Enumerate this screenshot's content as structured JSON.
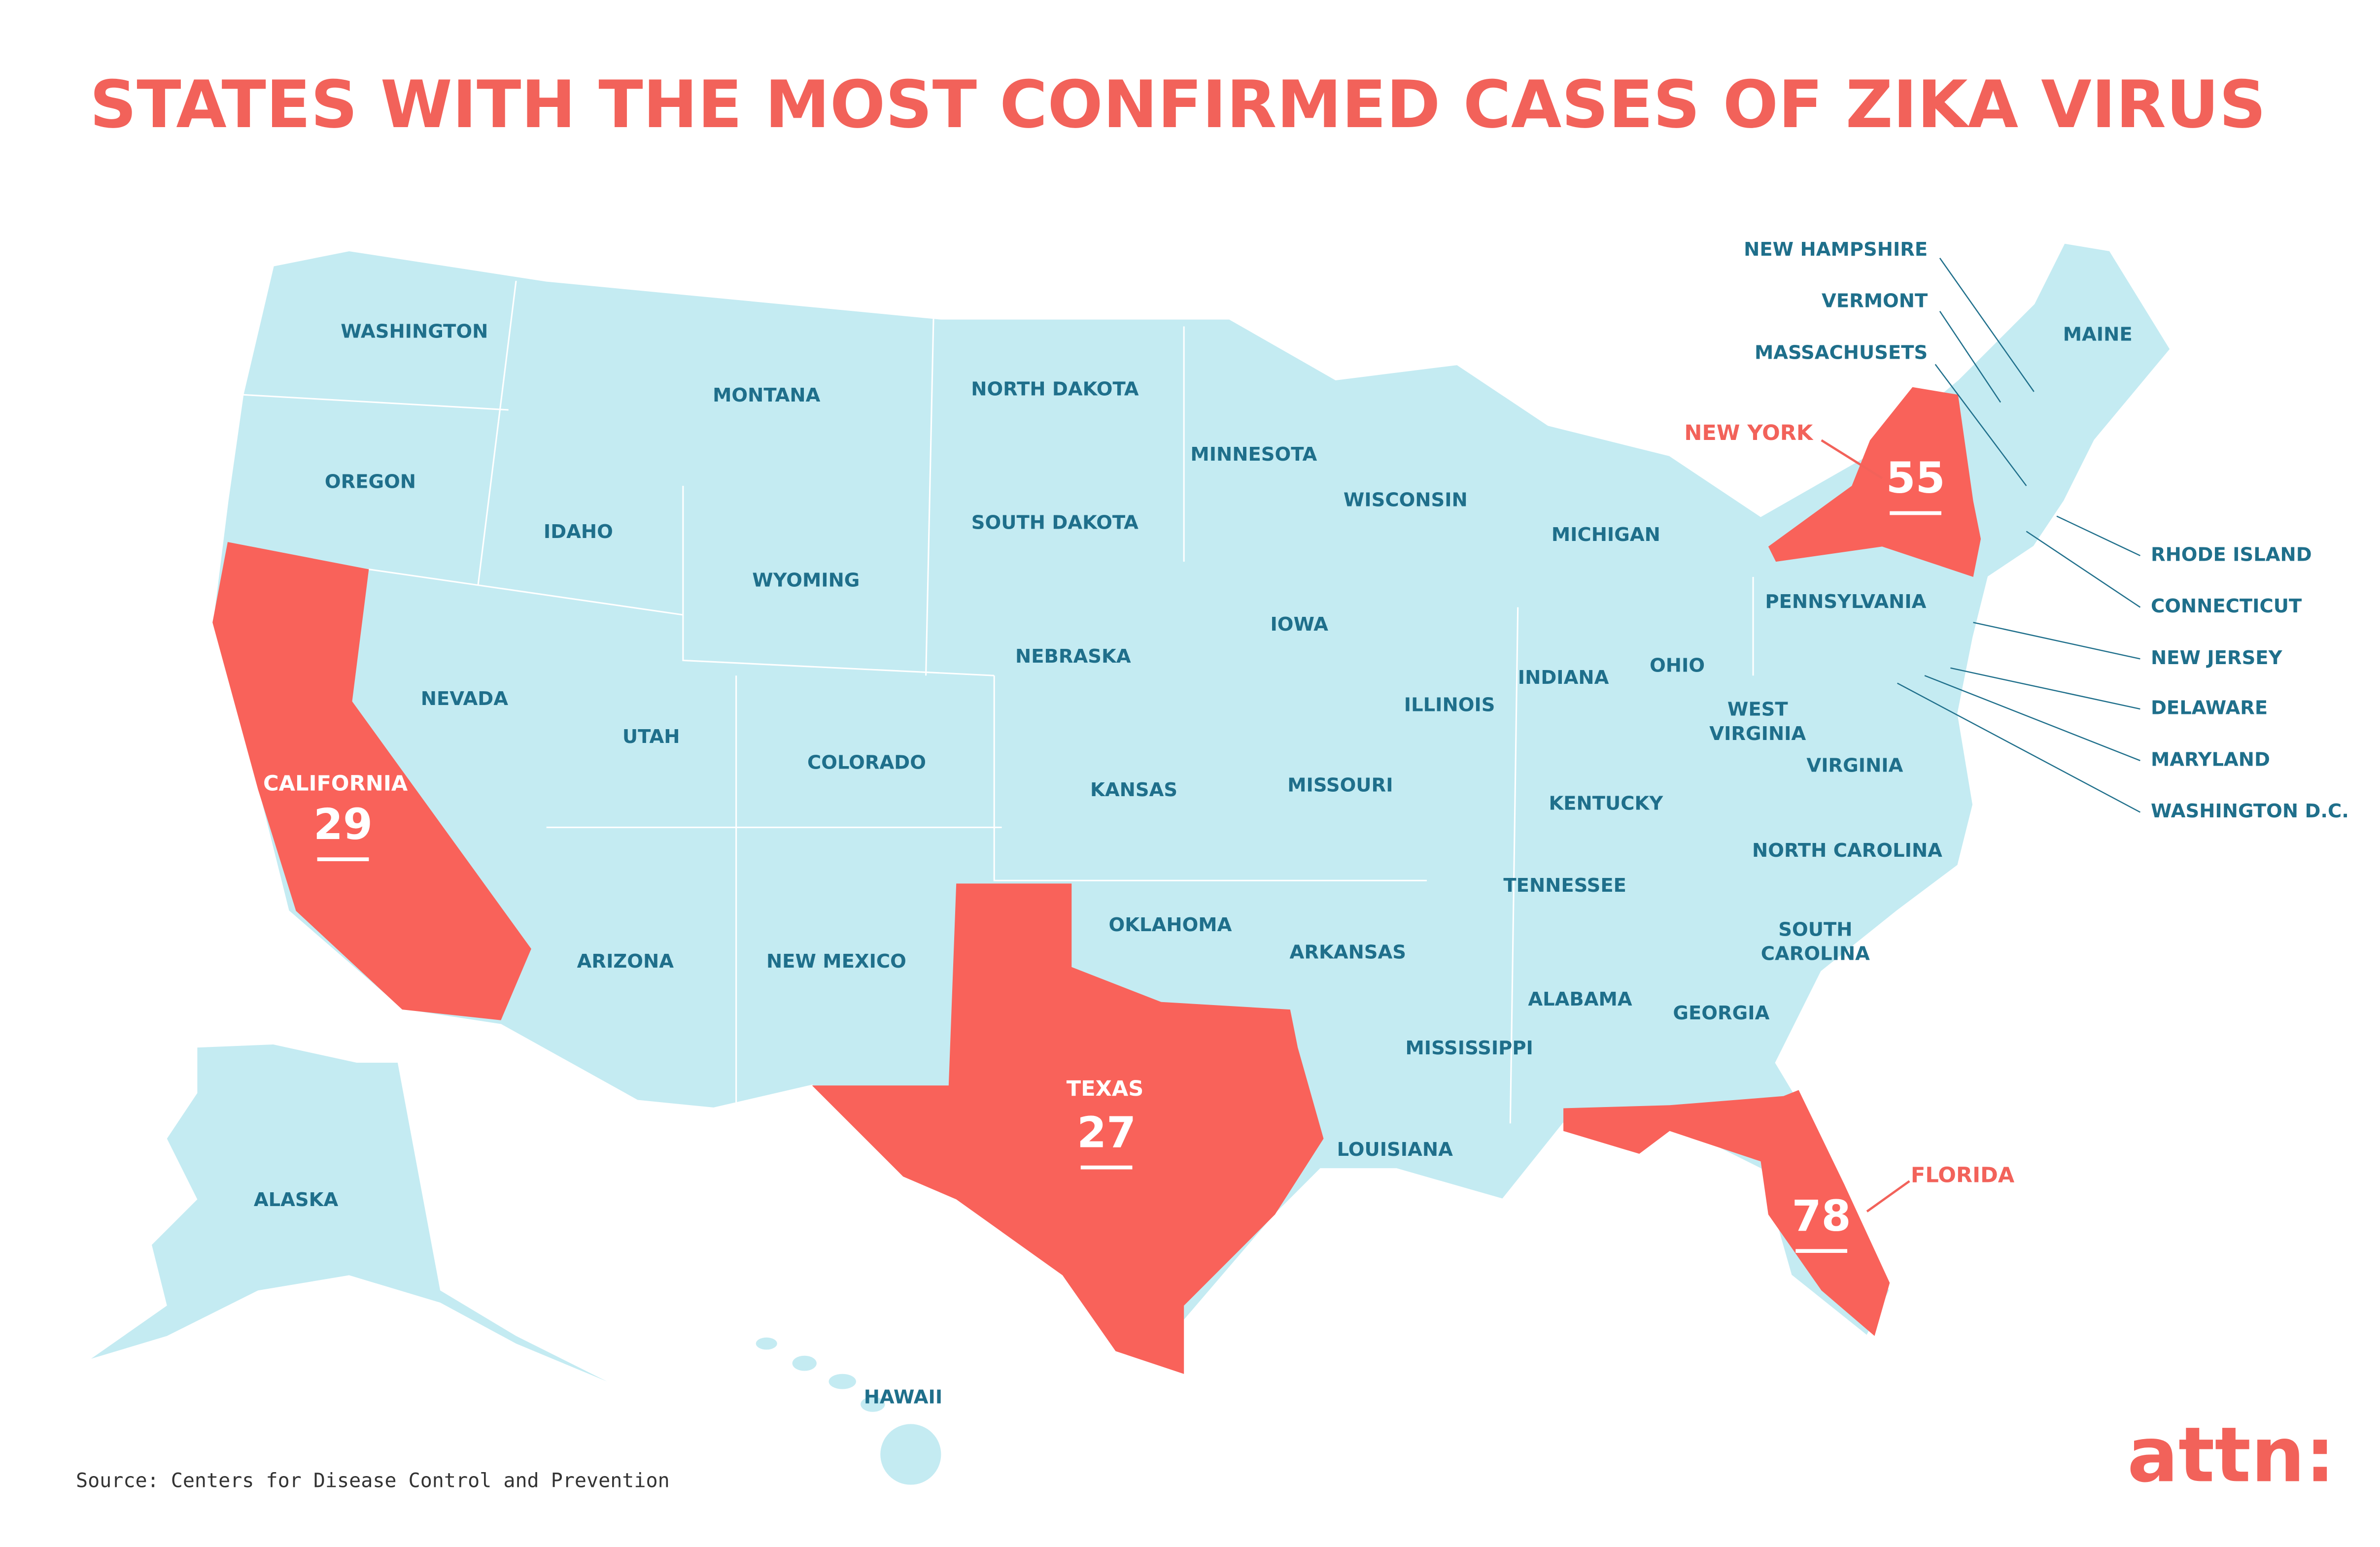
{
  "title": "STATES WITH THE MOST CONFIRMED CASES OF ZIKA VIRUS",
  "states": [
    "WASHINGTON",
    "OREGON",
    "IDAHO",
    "MONTANA",
    "WYOMING",
    "NEVADA",
    "UTAH",
    "COLORADO",
    "ARIZONA",
    "NEW MEXICO",
    "NORTH DAKOTA",
    "SOUTH DAKOTA",
    "NEBRASKA",
    "KANSAS",
    "OKLAHOMA",
    "MINNESOTA",
    "IOWA",
    "MISSOURI",
    "ARKANSAS",
    "LOUISIANA",
    "WISCONSIN",
    "ILLINOIS",
    "MICHIGAN",
    "INDIANA",
    "OHIO",
    "KENTUCKY",
    "TENNESSEE",
    "MISSISSIPPI",
    "ALABAMA",
    "GEORGIA",
    [
      "WEST",
      "VIRGINIA"
    ],
    "VIRGINIA",
    "NORTH CAROLINA",
    [
      "SOUTH",
      "CAROLINA"
    ],
    "PENNSYLVANIA",
    "MAINE",
    "ALASKA",
    "HAWAII"
  ],
  "callouts": [
    "NEW HAMPSHIRE",
    "VERMONT",
    "MASSACHUSETS",
    "RHODE ISLAND",
    "CONNECTICUT",
    "NEW JERSEY",
    "DELAWARE",
    "MARYLAND",
    "WASHINGTON D.C."
  ],
  "highlighted": [
    {
      "label": "CALIFORNIA",
      "cases": 29
    },
    {
      "label": "NEW YORK",
      "cases": 55
    },
    {
      "label": "TEXAS",
      "cases": 27
    },
    {
      "label": "FLORIDA",
      "cases": 78
    }
  ],
  "source": "Source: Centers for Disease Control and Prevention",
  "logo": "attn:"
}
